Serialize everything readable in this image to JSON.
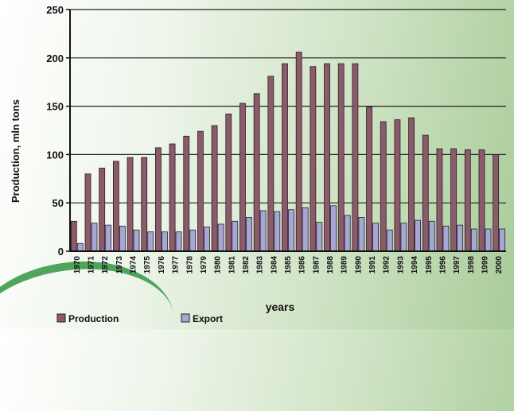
{
  "chart_data": {
    "type": "bar",
    "ylabel": "Production, mln tons",
    "xlabel": "years",
    "ylim": [
      0,
      250
    ],
    "yticks": [
      0,
      50,
      100,
      150,
      200,
      250
    ],
    "grid": true,
    "legend_position": "bottom-left",
    "categories": [
      "1970",
      "1971",
      "1972",
      "1973",
      "1974",
      "1975",
      "1976",
      "1977",
      "1978",
      "1979",
      "1980",
      "1981",
      "1982",
      "1983",
      "1984",
      "1985",
      "1986",
      "1987",
      "1988",
      "1989",
      "1990",
      "1991",
      "1992",
      "1993",
      "1994",
      "1995",
      "1996",
      "1997",
      "1998",
      "1999",
      "2000"
    ],
    "series": [
      {
        "name": "Production",
        "color": "#8c5a6a",
        "values": [
          31,
          80,
          86,
          93,
          97,
          97,
          107,
          111,
          119,
          124,
          130,
          142,
          153,
          163,
          181,
          194,
          206,
          191,
          194,
          194,
          194,
          149,
          134,
          136,
          138,
          120,
          106,
          106,
          105,
          105,
          100
        ]
      },
      {
        "name": "Export",
        "color": "#a9a5d6",
        "values": [
          8,
          29,
          27,
          26,
          22,
          20,
          20,
          20,
          22,
          25,
          28,
          31,
          35,
          42,
          41,
          43,
          45,
          30,
          47,
          37,
          35,
          29,
          22,
          29,
          32,
          31,
          26,
          27,
          23,
          23,
          23
        ]
      }
    ]
  }
}
